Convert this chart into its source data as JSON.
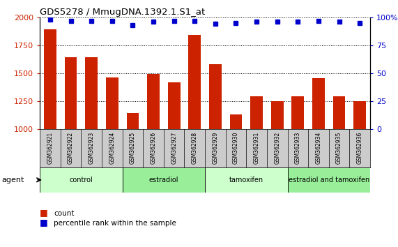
{
  "title": "GDS5278 / MmugDNA.1392.1.S1_at",
  "samples": [
    "GSM362921",
    "GSM362922",
    "GSM362923",
    "GSM362924",
    "GSM362925",
    "GSM362926",
    "GSM362927",
    "GSM362928",
    "GSM362929",
    "GSM362930",
    "GSM362931",
    "GSM362932",
    "GSM362933",
    "GSM362934",
    "GSM362935",
    "GSM362936"
  ],
  "counts": [
    1890,
    1640,
    1645,
    1460,
    1140,
    1490,
    1420,
    1840,
    1580,
    1130,
    1290,
    1250,
    1295,
    1455,
    1290,
    1248
  ],
  "percentiles": [
    98,
    97,
    97,
    97,
    93,
    96,
    97,
    97,
    94,
    95,
    96,
    96,
    96,
    97,
    96,
    95
  ],
  "bar_color": "#cc2200",
  "dot_color": "#0000cc",
  "ylim_left": [
    1000,
    2000
  ],
  "ylim_right": [
    0,
    100
  ],
  "yticks_left": [
    1000,
    1250,
    1500,
    1750,
    2000
  ],
  "yticks_right": [
    0,
    25,
    50,
    75,
    100
  ],
  "groups": [
    {
      "label": "control",
      "start": 0,
      "end": 4,
      "color": "#ccffcc"
    },
    {
      "label": "estradiol",
      "start": 4,
      "end": 8,
      "color": "#99ee99"
    },
    {
      "label": "tamoxifen",
      "start": 8,
      "end": 12,
      "color": "#ccffcc"
    },
    {
      "label": "estradiol and tamoxifen",
      "start": 12,
      "end": 16,
      "color": "#99ee99"
    }
  ],
  "agent_label": "agent",
  "legend_count_label": "count",
  "legend_pct_label": "percentile rank within the sample",
  "sample_bg_color": "#cccccc",
  "plot_bg_color": "#ffffff",
  "gridline_color": "#000000"
}
